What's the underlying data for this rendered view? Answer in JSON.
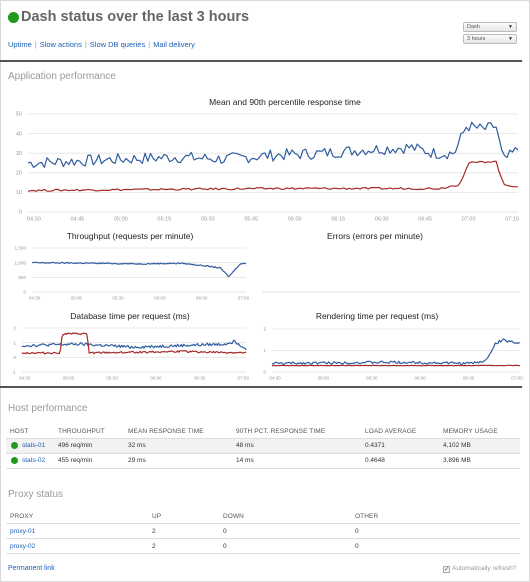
{
  "header": {
    "title": "Dash status over the last 3 hours",
    "status_color": "#1f9a1f"
  },
  "nav": {
    "links": [
      "Uptime",
      "Slow actions",
      "Slow DB queries",
      "Mail delivery"
    ]
  },
  "controls": {
    "app_select": "Dash",
    "range_select": "3 hours"
  },
  "sections": {
    "app_performance": "Application performance",
    "host_performance": "Host performance",
    "proxy_status": "Proxy status"
  },
  "colors": {
    "blue": "#2f5d9e",
    "red": "#a52a2a",
    "grid": "#e3e3e3",
    "link": "#1a5fb4",
    "ok": "#1f9a1f"
  },
  "chart_data": [
    {
      "type": "line",
      "title": "Mean and 90th percentile response time",
      "x_ticks": [
        "04:30",
        "04:45",
        "05:00",
        "05:15",
        "05:30",
        "05:45",
        "06:00",
        "06:15",
        "06:30",
        "06:45",
        "07:00",
        "07:15"
      ],
      "y_ticks": [
        0,
        10,
        20,
        30,
        40,
        50
      ],
      "ylim": [
        0,
        50
      ],
      "series": [
        {
          "color": "#2f5d9e",
          "keyframes": [
            [
              0,
              25
            ],
            [
              0.1,
              26
            ],
            [
              0.2,
              27
            ],
            [
              0.3,
              28
            ],
            [
              0.4,
              27
            ],
            [
              0.5,
              29
            ],
            [
              0.6,
              30
            ],
            [
              0.7,
              32
            ],
            [
              0.78,
              33
            ],
            [
              0.83,
              30
            ],
            [
              0.87,
              30
            ],
            [
              0.895,
              44
            ],
            [
              0.93,
              42
            ],
            [
              0.955,
              44
            ],
            [
              0.97,
              26
            ],
            [
              1,
              32
            ]
          ],
          "noise": 3
        },
        {
          "color": "#a52a2a",
          "keyframes": [
            [
              0,
              11
            ],
            [
              0.5,
              12
            ],
            [
              0.84,
              12
            ],
            [
              0.88,
              14
            ],
            [
              0.9,
              25
            ],
            [
              0.955,
              26
            ],
            [
              0.97,
              14
            ],
            [
              1,
              13
            ]
          ],
          "noise": 0.5
        }
      ]
    },
    {
      "type": "line",
      "title": "Throughput (requests per minute)",
      "x_ticks": [
        "04:30",
        "05:00",
        "05:30",
        "06:00",
        "06:30",
        "07:00"
      ],
      "y_ticks": [
        0,
        500,
        1000,
        1500
      ],
      "y_tick_labels": [
        "0",
        "500",
        "1,000",
        "1,500"
      ],
      "ylim": [
        0,
        1500
      ],
      "series": [
        {
          "color": "#2f5d9e",
          "keyframes": [
            [
              0,
              1000
            ],
            [
              0.3,
              980
            ],
            [
              0.5,
              960
            ],
            [
              0.7,
              980
            ],
            [
              0.8,
              900
            ],
            [
              0.88,
              820
            ],
            [
              0.92,
              520
            ],
            [
              0.97,
              950
            ],
            [
              1,
              980
            ]
          ],
          "noise": 20
        }
      ]
    },
    {
      "type": "line",
      "title": "Errors (errors per minute)",
      "x_ticks": [],
      "y_ticks": [],
      "series": []
    },
    {
      "type": "line",
      "title": "Database time per request (ms)",
      "x_ticks": [
        "04:30",
        "05:00",
        "05:30",
        "06:00",
        "06:30",
        "07:00"
      ],
      "y_ticks": [
        -1,
        0,
        1,
        2
      ],
      "ylim": [
        -1,
        2
      ],
      "series": [
        {
          "color": "#2f5d9e",
          "keyframes": [
            [
              0,
              0.8
            ],
            [
              0.25,
              0.9
            ],
            [
              0.5,
              0.7
            ],
            [
              0.7,
              0.8
            ],
            [
              0.9,
              0.9
            ],
            [
              0.95,
              1.1
            ],
            [
              1,
              0.6
            ]
          ],
          "noise": 0.1
        },
        {
          "color": "#a52a2a",
          "keyframes": [
            [
              0,
              0.3
            ],
            [
              0.17,
              0.3
            ],
            [
              0.18,
              1.6
            ],
            [
              0.29,
              1.6
            ],
            [
              0.3,
              0.3
            ],
            [
              0.7,
              0.4
            ],
            [
              1,
              0.3
            ]
          ],
          "noise": 0.06
        }
      ]
    },
    {
      "type": "line",
      "title": "Rendering time per request (ms)",
      "x_ticks": [
        "04:30",
        "05:00",
        "05:30",
        "06:00",
        "06:30",
        "07:00"
      ],
      "y_ticks": [
        0,
        1,
        2
      ],
      "ylim": [
        0,
        2
      ],
      "series": [
        {
          "color": "#2f5d9e",
          "keyframes": [
            [
              0,
              0.4
            ],
            [
              0.5,
              0.45
            ],
            [
              0.8,
              0.4
            ],
            [
              0.86,
              0.5
            ],
            [
              0.9,
              1.3
            ],
            [
              0.93,
              1.5
            ],
            [
              0.97,
              1.4
            ],
            [
              1,
              1.3
            ]
          ],
          "noise": 0.06
        },
        {
          "color": "#a52a2a",
          "keyframes": [
            [
              0,
              0.3
            ],
            [
              1,
              0.3
            ]
          ],
          "noise": 0.01
        }
      ]
    }
  ],
  "hosts": {
    "columns": [
      "HOST",
      "THROUGHPUT",
      "MEAN RESPONSE TIME",
      "90TH PCT. RESPONSE TIME",
      "LOAD AVERAGE",
      "MEMORY USAGE"
    ],
    "rows": [
      {
        "host": "stats-01",
        "throughput": "496 req/min",
        "mean": "32 ms",
        "p90": "48 ms",
        "load": "0.4371",
        "memory": "4,102 MB"
      },
      {
        "host": "stats-02",
        "throughput": "455 req/min",
        "mean": "29 ms",
        "p90": "14 ms",
        "load": "0.4648",
        "memory": "3,896 MB"
      }
    ]
  },
  "proxies": {
    "columns": [
      "PROXY",
      "UP",
      "DOWN",
      "OTHER"
    ],
    "rows": [
      {
        "proxy": "proxy-01",
        "up": "2",
        "down": "0",
        "other": "0"
      },
      {
        "proxy": "proxy-02",
        "up": "2",
        "down": "0",
        "other": "0"
      }
    ]
  },
  "footer": {
    "permanent_link": "Permanent link",
    "auto_refresh": "Automatically refresh?",
    "auto_refresh_checked": true
  }
}
